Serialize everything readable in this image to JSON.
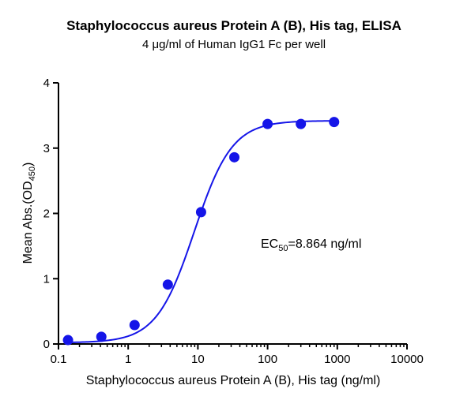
{
  "chart_data": {
    "type": "scatter",
    "title": "Staphylococcus aureus Protein A (B), His tag, ELISA",
    "subtitle": "4 μg/ml of Human IgG1 Fc per well",
    "xlabel": "Staphylococcus aureus Protein A (B), His tag (ng/ml)",
    "ylabel_main": "Mean Abs.(OD",
    "ylabel_sub": "450",
    "ylabel_end": ")",
    "x_scale": "log",
    "xlim": [
      0.1,
      10000
    ],
    "ylim": [
      0,
      4
    ],
    "x_ticks": [
      0.1,
      1,
      10,
      100,
      1000,
      10000
    ],
    "x_tick_labels": [
      "0.1",
      "1",
      "10",
      "100",
      "1000",
      "10000"
    ],
    "y_ticks": [
      0,
      1,
      2,
      3,
      4
    ],
    "y_tick_labels": [
      "0",
      "1",
      "2",
      "3",
      "4"
    ],
    "grid": false,
    "annotation": {
      "prefix": "EC",
      "sub": "50",
      "suffix": "=8.864 ng/ml"
    },
    "series": [
      {
        "x": [
          0.137,
          0.412,
          1.235,
          3.704,
          11.11,
          33.33,
          100,
          300,
          900
        ],
        "y": [
          0.06,
          0.11,
          0.29,
          0.91,
          2.02,
          2.86,
          3.37,
          3.37,
          3.4
        ]
      }
    ],
    "fit_curve": {
      "bottom": 0.02,
      "top": 3.42,
      "ec50": 8.864,
      "hill": 1.6
    },
    "colors": {
      "series": "#1515e8",
      "axis": "#000000"
    }
  }
}
